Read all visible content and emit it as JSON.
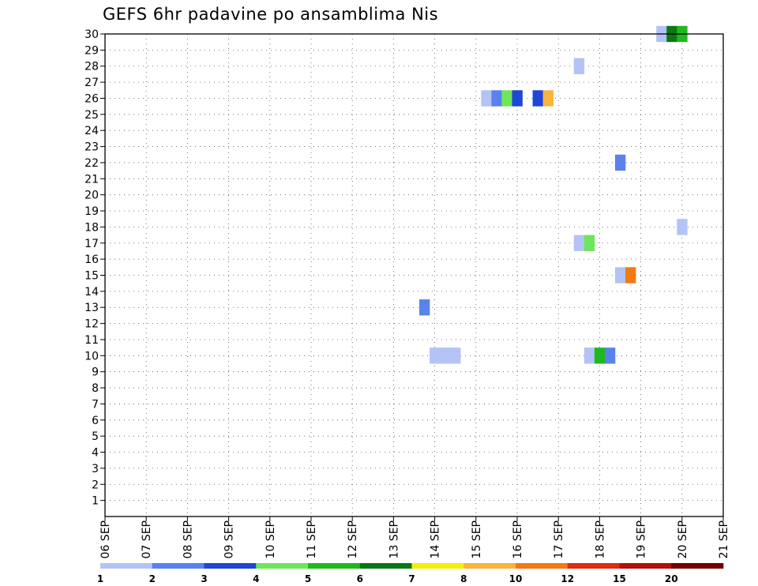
{
  "page": {
    "title": "GEFS 6hr padavine po ansamblima Nis"
  },
  "chart_data": {
    "type": "heatmap",
    "title": "GEFS 6hr padavine po ansamblima Nis",
    "x_tick_labels": [
      "06 SEP",
      "07 SEP",
      "08 SEP",
      "09 SEP",
      "10 SEP",
      "11 SEP",
      "12 SEP",
      "13 SEP",
      "14 SEP",
      "15 SEP",
      "16 SEP",
      "17 SEP",
      "18 SEP",
      "19 SEP",
      "20 SEP",
      "21 SEP"
    ],
    "x_range_days": [
      0,
      15
    ],
    "y_tick_labels": [
      "1",
      "2",
      "3",
      "4",
      "5",
      "6",
      "7",
      "8",
      "9",
      "10",
      "11",
      "12",
      "13",
      "14",
      "15",
      "16",
      "17",
      "18",
      "19",
      "20",
      "21",
      "22",
      "23",
      "24",
      "25",
      "26",
      "27",
      "28",
      "29",
      "30"
    ],
    "y_range": [
      0,
      30
    ],
    "grid": true,
    "legend": {
      "placement": "bottom",
      "labels": [
        "1",
        "2",
        "3",
        "4",
        "5",
        "6",
        "7",
        "8",
        "10",
        "12",
        "15",
        "20"
      ],
      "colors": [
        "#b4c3f5",
        "#5a82eb",
        "#1e46d7",
        "#6ee65a",
        "#1eb91e",
        "#0a7814",
        "#f5f00a",
        "#fab43c",
        "#f57814",
        "#dc2d0f",
        "#b40f0a",
        "#700000"
      ]
    },
    "cells": [
      {
        "member": 30,
        "day": 13.5,
        "class": 1
      },
      {
        "member": 30,
        "day": 13.75,
        "class": 6
      },
      {
        "member": 30,
        "day": 14.0,
        "class": 5
      },
      {
        "member": 28,
        "day": 11.5,
        "class": 1
      },
      {
        "member": 26,
        "day": 9.25,
        "class": 1
      },
      {
        "member": 26,
        "day": 9.5,
        "class": 2
      },
      {
        "member": 26,
        "day": 9.75,
        "class": 4
      },
      {
        "member": 26,
        "day": 10.0,
        "class": 3
      },
      {
        "member": 26,
        "day": 10.5,
        "class": 3
      },
      {
        "member": 26,
        "day": 10.75,
        "class": 8
      },
      {
        "member": 22,
        "day": 12.5,
        "class": 2
      },
      {
        "member": 18,
        "day": 14.0,
        "class": 1
      },
      {
        "member": 17,
        "day": 11.5,
        "class": 1
      },
      {
        "member": 17,
        "day": 11.75,
        "class": 4
      },
      {
        "member": 15,
        "day": 12.5,
        "class": 1
      },
      {
        "member": 15,
        "day": 12.75,
        "class": 9
      },
      {
        "member": 13,
        "day": 7.75,
        "class": 2
      },
      {
        "member": 10,
        "day": 8.0,
        "class": 1
      },
      {
        "member": 10,
        "day": 8.25,
        "class": 1
      },
      {
        "member": 10,
        "day": 8.5,
        "class": 1
      },
      {
        "member": 10,
        "day": 11.75,
        "class": 1
      },
      {
        "member": 10,
        "day": 12.0,
        "class": 5
      },
      {
        "member": 10,
        "day": 12.25,
        "class": 2
      }
    ]
  }
}
